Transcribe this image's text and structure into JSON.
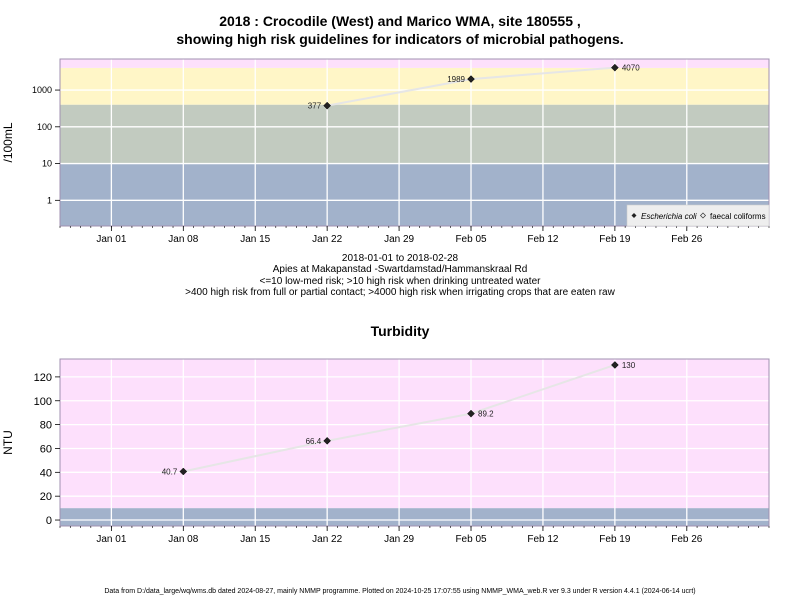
{
  "chart_data": [
    {
      "type": "line",
      "title": "2018 : Crocodile (West) and Marico WMA, site 180555 ,",
      "subtitle": "showing high risk guidelines for indicators of microbial pathogens.",
      "ylabel": "/100mL",
      "y_scale": "log",
      "ylim": [
        0.2,
        7000
      ],
      "yticks": [
        1,
        10,
        100,
        1000
      ],
      "ytick_labels": [
        "1",
        "10",
        "100",
        "1000"
      ],
      "xlim": [
        "2017-12-27",
        "2018-03-06"
      ],
      "xtick_labels": [
        "Jan 01",
        "Jan 08",
        "Jan 15",
        "Jan 22",
        "Jan 29",
        "Feb 05",
        "Feb 12",
        "Feb 19",
        "Feb 26"
      ],
      "xticks": [
        "2018-01-01",
        "2018-01-08",
        "2018-01-15",
        "2018-01-22",
        "2018-01-29",
        "2018-02-05",
        "2018-02-12",
        "2018-02-19",
        "2018-02-26"
      ],
      "bands": [
        {
          "from": 0.2,
          "to": 10,
          "color": "#a2b2cb"
        },
        {
          "from": 10,
          "to": 400,
          "color": "#c2cbc0"
        },
        {
          "from": 400,
          "to": 4000,
          "color": "#fff6c7"
        },
        {
          "from": 4000,
          "to": 7000,
          "color": "#fde0fc"
        }
      ],
      "series": [
        {
          "name": "Escherichia coli",
          "marker": "filled-diamond",
          "x": [
            "2018-01-22",
            "2018-02-05",
            "2018-02-19"
          ],
          "y": [
            377,
            1989,
            4070
          ],
          "labels": [
            "377",
            "1989",
            "4070"
          ]
        }
      ],
      "legend": {
        "placement": "bottom-right",
        "entries": [
          "Escherichia coli",
          "faecal coliforms"
        ]
      },
      "grid": true
    },
    {
      "type": "line",
      "title": "Turbidity",
      "ylabel": "NTU",
      "ylim": [
        -5,
        135
      ],
      "yticks": [
        0,
        20,
        40,
        60,
        80,
        100,
        120
      ],
      "ytick_labels": [
        "0",
        "20",
        "40",
        "60",
        "80",
        "100",
        "120"
      ],
      "xlim": [
        "2017-12-27",
        "2018-03-06"
      ],
      "xtick_labels": [
        "Jan 01",
        "Jan 08",
        "Jan 15",
        "Jan 22",
        "Jan 29",
        "Feb 05",
        "Feb 12",
        "Feb 19",
        "Feb 26"
      ],
      "xticks": [
        "2018-01-01",
        "2018-01-08",
        "2018-01-15",
        "2018-01-22",
        "2018-01-29",
        "2018-02-05",
        "2018-02-12",
        "2018-02-19",
        "2018-02-26"
      ],
      "bands": [
        {
          "from": -5,
          "to": 10,
          "color": "#a2b2cb"
        },
        {
          "from": 10,
          "to": 135,
          "color": "#fde0fc"
        }
      ],
      "series": [
        {
          "marker": "filled-diamond",
          "x": [
            "2018-01-08",
            "2018-01-22",
            "2018-02-05",
            "2018-02-19"
          ],
          "y": [
            40.7,
            66.4,
            89.2,
            130
          ],
          "labels": [
            "40.7",
            "66.4",
            "89.2",
            "130"
          ]
        }
      ],
      "grid": true
    }
  ],
  "captions": {
    "date_range": "2018-01-01 to 2018-02-28",
    "location": "Apies at Makapanstad -Swartdamstad/Hammanskraal Rd",
    "guideline_1": "<=10 low-med risk; >10 high risk when drinking untreated water",
    "guideline_2": ">400 high risk from full or partial contact; >4000 high risk when irrigating crops that are eaten raw"
  },
  "footer": "Data from D:/data_large/wq/wms.db dated 2024-08-27, mainly NMMP programme. Plotted on 2024-10-25 17:07:55 using NMMP_WMA_web.R ver 9.3 under R version 4.4.1 (2024-06-14 ucrt)"
}
